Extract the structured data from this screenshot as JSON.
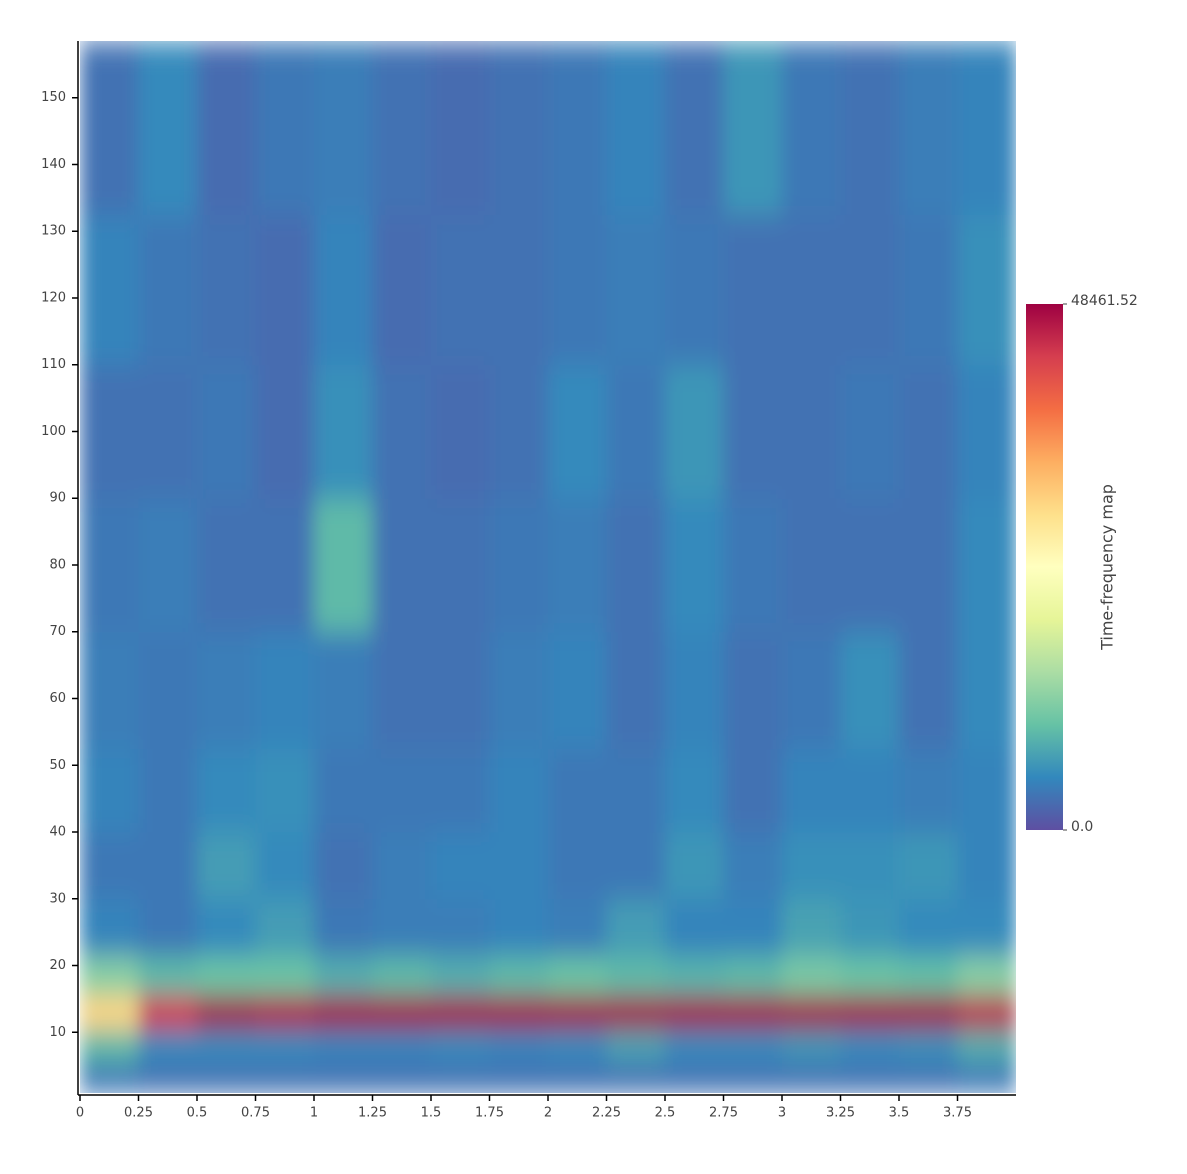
{
  "chart_data": {
    "type": "heatmap",
    "colorbar_title": "Time-frequency map",
    "x": [
      0.125,
      0.375,
      0.625,
      0.875,
      1.125,
      1.375,
      1.625,
      1.875,
      2.125,
      2.375,
      2.625,
      2.875,
      3.125,
      3.375,
      3.625,
      3.875
    ],
    "y": [
      3,
      8,
      13,
      18,
      25,
      35,
      45,
      60,
      80,
      100,
      120,
      145
    ],
    "z": [
      [
        3500,
        3000,
        3000,
        3000,
        3000,
        3000,
        3000,
        3000,
        3000,
        3000,
        3000,
        3000,
        3000,
        3000,
        3000,
        3500
      ],
      [
        9000,
        5000,
        5000,
        5000,
        4500,
        4500,
        5000,
        4500,
        5000,
        7000,
        5000,
        5000,
        6000,
        5000,
        5500,
        8000
      ],
      [
        30000,
        44000,
        48000,
        47000,
        48000,
        48000,
        48000,
        48000,
        48000,
        48000,
        48000,
        48000,
        48000,
        48000,
        48000,
        46000
      ],
      [
        12000,
        9000,
        10000,
        10000,
        8000,
        9000,
        8000,
        9000,
        10000,
        9000,
        8500,
        9000,
        11000,
        10000,
        9500,
        12000
      ],
      [
        4500,
        3500,
        5000,
        6500,
        3500,
        4000,
        4000,
        4500,
        4000,
        6500,
        4500,
        4500,
        7000,
        6000,
        5000,
        5000
      ],
      [
        3500,
        3500,
        6500,
        5000,
        3000,
        4000,
        4500,
        4500,
        3500,
        3500,
        6000,
        4000,
        5500,
        5500,
        6000,
        4500
      ],
      [
        4500,
        3500,
        5000,
        5500,
        3500,
        3500,
        3500,
        4500,
        3500,
        3500,
        5000,
        3000,
        4500,
        4500,
        4000,
        4500
      ],
      [
        4000,
        3500,
        4000,
        4500,
        4000,
        3000,
        3000,
        4000,
        4500,
        3000,
        4500,
        3000,
        3500,
        5500,
        3000,
        5000
      ],
      [
        3500,
        4000,
        3000,
        3000,
        9000,
        3000,
        3000,
        3500,
        4000,
        3000,
        5000,
        3500,
        3000,
        3000,
        3000,
        5000
      ],
      [
        3000,
        3000,
        3500,
        2500,
        5500,
        3000,
        2500,
        3000,
        5000,
        3500,
        6000,
        3000,
        3000,
        3500,
        3000,
        4500
      ],
      [
        4500,
        3500,
        3000,
        2500,
        4500,
        2500,
        3000,
        3000,
        3500,
        4000,
        3500,
        3000,
        3000,
        3000,
        3500,
        5500
      ],
      [
        3000,
        5000,
        2500,
        3500,
        4000,
        3000,
        2500,
        3000,
        3500,
        4500,
        3000,
        6000,
        3500,
        3000,
        4000,
        4500
      ]
    ],
    "xlim": [
      0,
      4
    ],
    "ylim": [
      0.9,
      158.5
    ],
    "xticks": [
      0,
      0.25,
      0.5,
      0.75,
      1,
      1.25,
      1.5,
      1.75,
      2,
      2.25,
      2.5,
      2.75,
      3,
      3.25,
      3.5,
      3.75
    ],
    "yticks": [
      10,
      20,
      30,
      40,
      50,
      60,
      70,
      80,
      90,
      100,
      110,
      120,
      130,
      140,
      150
    ],
    "zlim": [
      0,
      48461.52
    ],
    "zticks": [
      {
        "value": 0,
        "label": "0.0"
      },
      48461.52
    ],
    "colorscale": [
      "#5e4fa2",
      "#3288bd",
      "#66c2a5",
      "#abdda4",
      "#e6f598",
      "#ffffbf",
      "#fee08b",
      "#fdae61",
      "#f46d43",
      "#d53e4f",
      "#9e0142"
    ]
  }
}
